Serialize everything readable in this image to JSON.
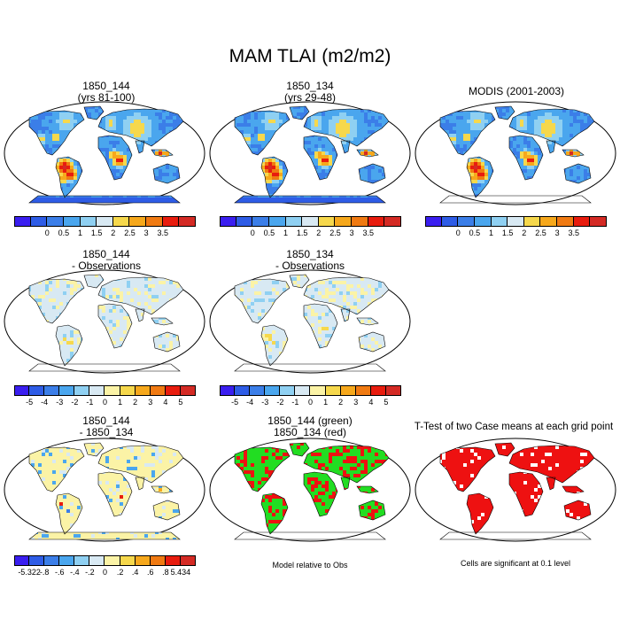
{
  "title": "MAM TLAI (m2/m2)",
  "panels": [
    {
      "id": "p1",
      "title_line1": "1850_144",
      "title_line2": "(yrs 81-100)",
      "style": "abs",
      "antarctica": true
    },
    {
      "id": "p2",
      "title_line1": "1850_134",
      "title_line2": "(yrs 29-48)",
      "style": "abs",
      "antarctica": true
    },
    {
      "id": "p3",
      "title_line1": "MODIS (2001-2003)",
      "title_line2": "",
      "style": "abs_obs",
      "antarctica": false
    },
    {
      "id": "p4",
      "title_line1": "1850_144",
      "title_line2": "- Observations",
      "style": "diff",
      "antarctica": false
    },
    {
      "id": "p5",
      "title_line1": "1850_134",
      "title_line2": "- Observations",
      "style": "diff",
      "antarctica": false
    },
    {
      "id": "p6",
      "title_line1": "1850_144",
      "title_line2": "- 1850_134",
      "style": "diff2",
      "antarctica": true
    },
    {
      "id": "p7",
      "title_line1": "1850_144 (green)",
      "title_line2": "1850_134 (red)",
      "style": "greenred",
      "antarctica": false
    },
    {
      "id": "p8",
      "title_line1": "T-Test of two Case means at each grid point",
      "title_line2": "",
      "style": "ttest",
      "antarctica": false
    }
  ],
  "colorbars": {
    "abs": {
      "colors": [
        "#3a1ef0",
        "#2e5ce6",
        "#3b7ee8",
        "#4aa6ee",
        "#8fd0f2",
        "#d8e9f3",
        "#f6d84c",
        "#f6a81c",
        "#f07a12",
        "#e81c0e",
        "#d42a24"
      ],
      "labels": [
        "0",
        "0.5",
        "1",
        "1.5",
        "2",
        "2.5",
        "3",
        "3.5"
      ]
    },
    "diff": {
      "colors": [
        "#3a1ef0",
        "#2e5ce6",
        "#3b7ee8",
        "#4aa6ee",
        "#8fd0f2",
        "#d8e9f3",
        "#fbf3a6",
        "#f6d84c",
        "#f6a81c",
        "#f07a12",
        "#e81c0e",
        "#d42a24"
      ],
      "labels": [
        "-5",
        "-4",
        "-3",
        "-2",
        "-1",
        "0",
        "1",
        "2",
        "3",
        "4",
        "5"
      ]
    },
    "diff2": {
      "colors": [
        "#3a1ef0",
        "#2e5ce6",
        "#3b7ee8",
        "#4aa6ee",
        "#8fd0f2",
        "#d8e9f3",
        "#fbf3a6",
        "#f6d84c",
        "#f6a81c",
        "#f07a12",
        "#e81c0e",
        "#d42a24"
      ],
      "labels": [
        "-5.322",
        "-.8",
        "-.6",
        "-.4",
        "-.2",
        "0",
        ".2",
        ".4",
        ".6",
        ".8",
        "5.434"
      ]
    }
  },
  "notes": {
    "model_relative": "Model relative to Obs",
    "significance": "Cells are significant at 0.1 level"
  }
}
